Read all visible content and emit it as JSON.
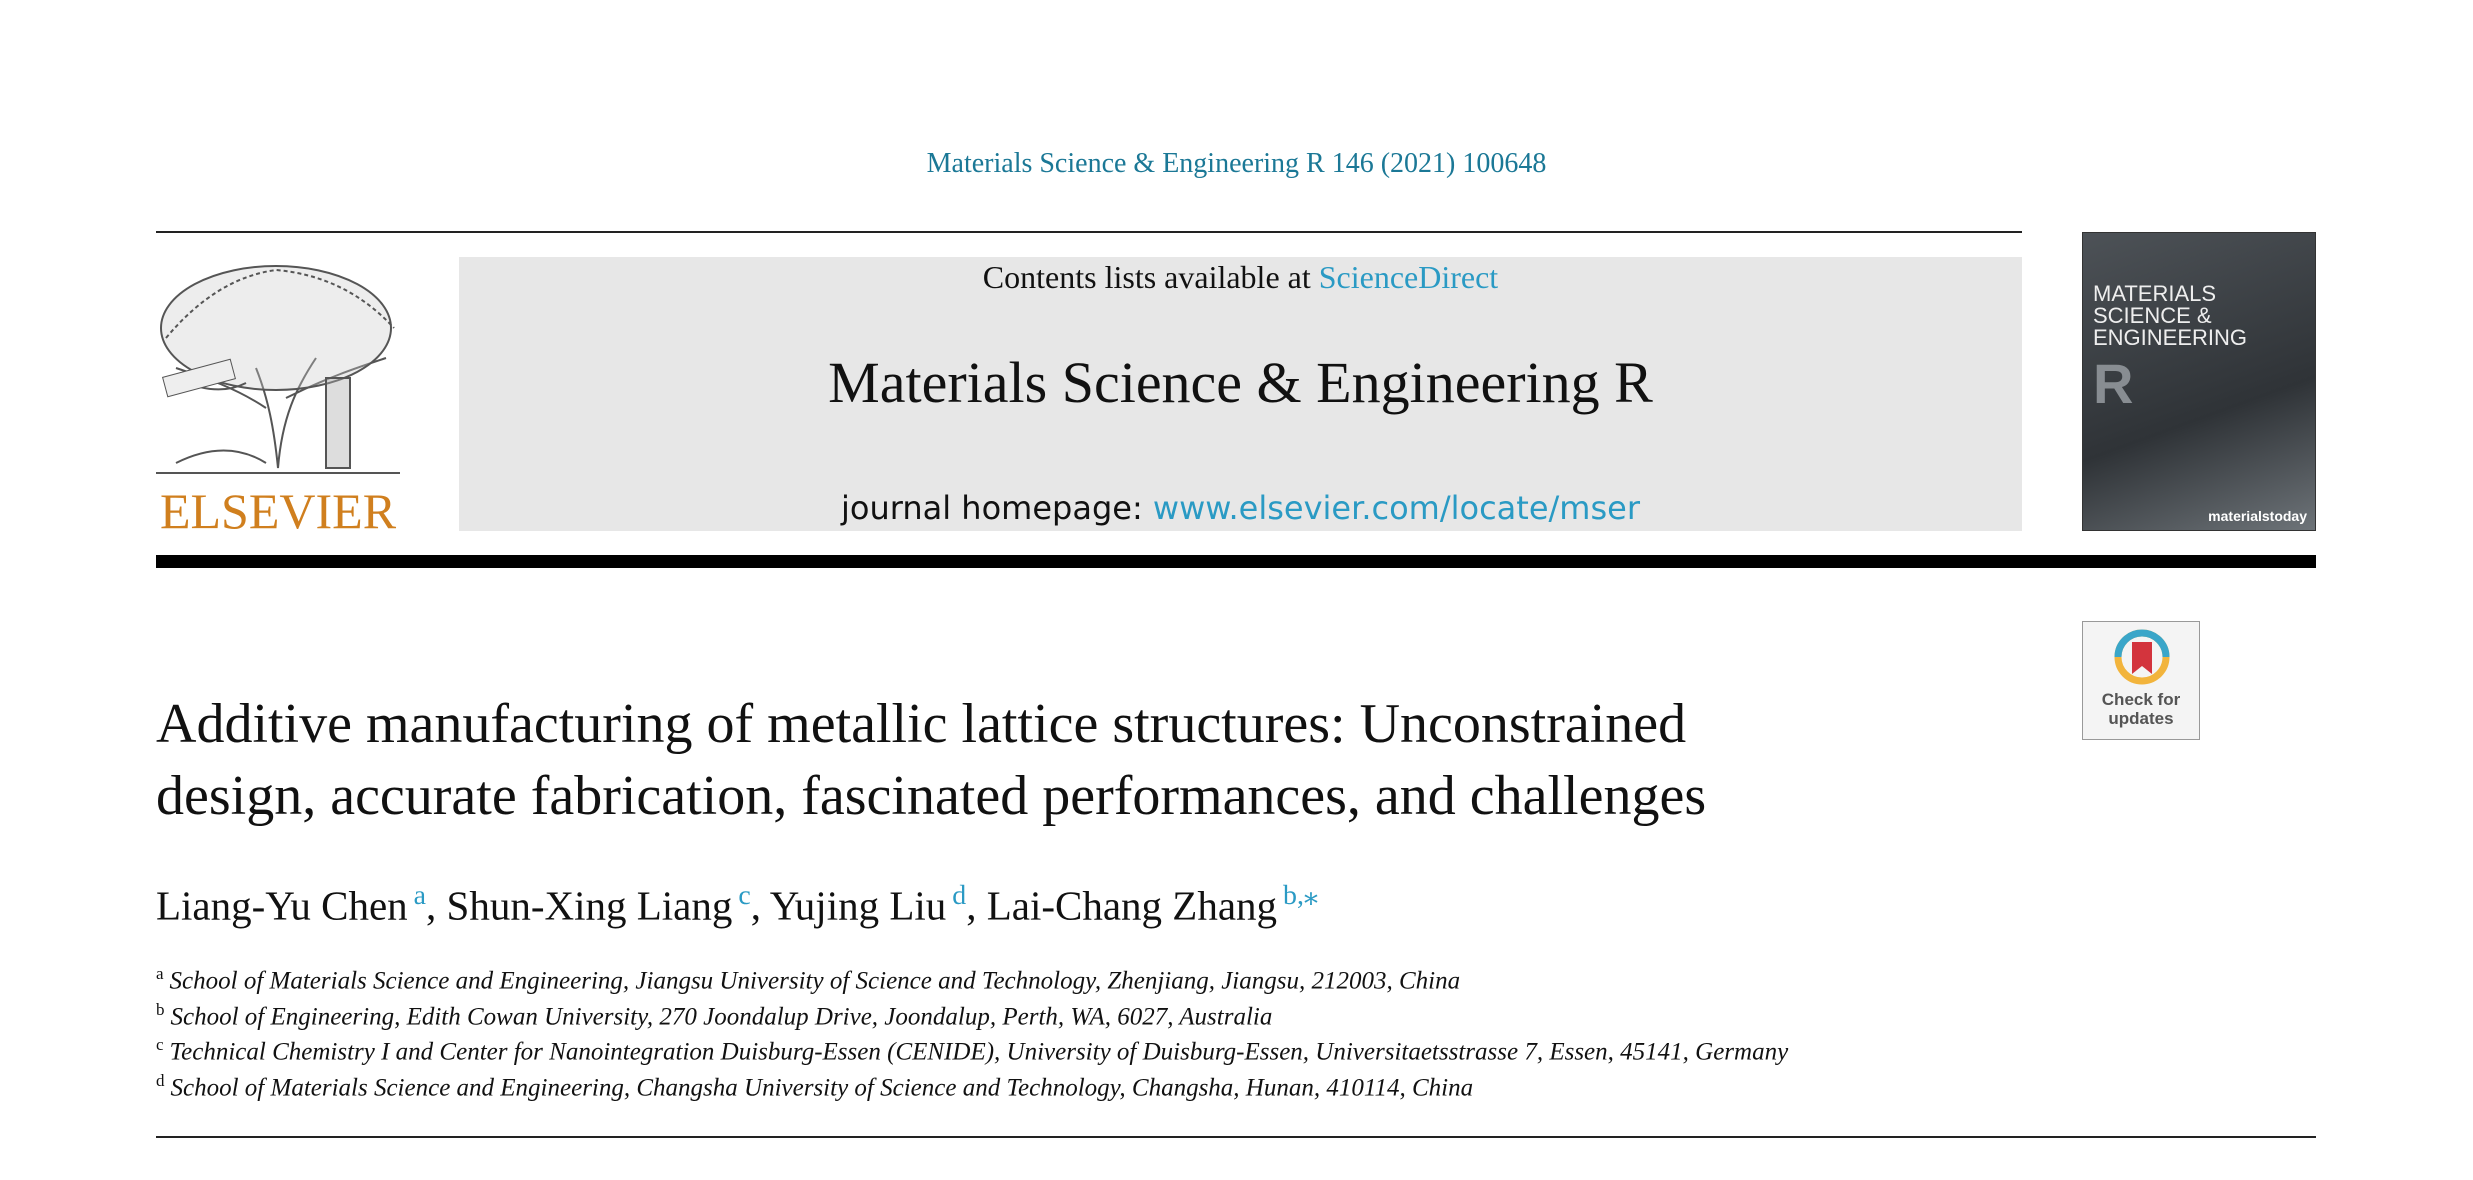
{
  "header": {
    "citation": "Materials Science & Engineering R 146 (2021) 100648",
    "contents_prefix": "Contents lists available at",
    "contents_link": "ScienceDirect",
    "journal": "Materials Science & Engineering R",
    "homepage_prefix": "journal homepage:",
    "homepage_url": "www.elsevier.com/locate/mser",
    "publisher": "ELSEVIER",
    "cover": {
      "title_lines": [
        "MATERIALS",
        "SCIENCE &",
        "ENGINEERING"
      ],
      "letter": "R",
      "brand": "materialstoday"
    },
    "update_badge": [
      "Check for",
      "updates"
    ]
  },
  "article": {
    "title_lines": [
      "Additive manufacturing of metallic lattice structures: Unconstrained",
      "design, accurate fabrication, fascinated performances, and challenges"
    ],
    "authors": [
      {
        "name": "Liang-Yu Chen",
        "sup": "a",
        "sep": ","
      },
      {
        "name": "Shun-Xing Liang",
        "sup": "c",
        "sep": ","
      },
      {
        "name": "Yujing Liu",
        "sup": "d",
        "sep": ","
      },
      {
        "name": "Lai-Chang Zhang",
        "sup": "b,⁎"
      }
    ],
    "affiliations": [
      {
        "label": "a",
        "text": "School of Materials Science and Engineering, Jiangsu University of Science and Technology, Zhenjiang, Jiangsu, 212003, China"
      },
      {
        "label": "b",
        "text": "School of Engineering, Edith Cowan University, 270 Joondalup Drive, Joondalup, Perth, WA, 6027, Australia"
      },
      {
        "label": "c",
        "text": "Technical Chemistry I and Center for Nanointegration Duisburg-Essen (CENIDE), University of Duisburg-Essen, Universitaetsstrasse 7, Essen, 45141, Germany"
      },
      {
        "label": "d",
        "text": "School of Materials Science and Engineering, Changsha University of Science and Technology, Changsha, Hunan, 410114, China"
      }
    ]
  }
}
